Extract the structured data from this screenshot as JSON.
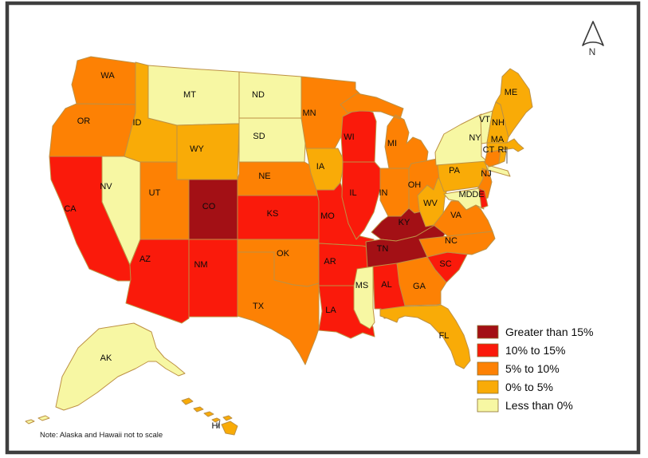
{
  "note": "Note: Alaska and Hawaii not to scale",
  "north_label": "N",
  "frame_color": "#3e3e3e",
  "map_border_color": "#bd9144",
  "background": "#ffffff",
  "legend": {
    "items": [
      {
        "key": "gt15",
        "label": "Greater than 15%",
        "color": "#a31015"
      },
      {
        "key": "r10_15",
        "label": "10% to 15%",
        "color": "#fa1a0b"
      },
      {
        "key": "o5_10",
        "label": "5% to 10%",
        "color": "#fd8104"
      },
      {
        "key": "a0_5",
        "label": "0% to 5%",
        "color": "#f9ab07"
      },
      {
        "key": "lt0",
        "label": "Less than 0%",
        "color": "#f7f7a3"
      }
    ]
  },
  "states": [
    {
      "abbr": "WA",
      "category": "o5_10"
    },
    {
      "abbr": "OR",
      "category": "o5_10"
    },
    {
      "abbr": "CA",
      "category": "r10_15"
    },
    {
      "abbr": "NV",
      "category": "lt0"
    },
    {
      "abbr": "ID",
      "category": "a0_5"
    },
    {
      "abbr": "MT",
      "category": "lt0"
    },
    {
      "abbr": "WY",
      "category": "a0_5"
    },
    {
      "abbr": "UT",
      "category": "o5_10"
    },
    {
      "abbr": "CO",
      "category": "gt15"
    },
    {
      "abbr": "AZ",
      "category": "r10_15"
    },
    {
      "abbr": "NM",
      "category": "r10_15"
    },
    {
      "abbr": "ND",
      "category": "lt0"
    },
    {
      "abbr": "SD",
      "category": "lt0"
    },
    {
      "abbr": "NE",
      "category": "o5_10"
    },
    {
      "abbr": "KS",
      "category": "r10_15"
    },
    {
      "abbr": "OK",
      "category": "o5_10"
    },
    {
      "abbr": "TX",
      "category": "o5_10"
    },
    {
      "abbr": "MN",
      "category": "o5_10"
    },
    {
      "abbr": "IA",
      "category": "a0_5"
    },
    {
      "abbr": "MO",
      "category": "r10_15"
    },
    {
      "abbr": "AR",
      "category": "r10_15"
    },
    {
      "abbr": "LA",
      "category": "r10_15"
    },
    {
      "abbr": "WI",
      "category": "r10_15"
    },
    {
      "abbr": "IL",
      "category": "r10_15"
    },
    {
      "abbr": "MI",
      "category": "o5_10"
    },
    {
      "abbr": "IN",
      "category": "o5_10"
    },
    {
      "abbr": "OH",
      "category": "o5_10"
    },
    {
      "abbr": "KY",
      "category": "gt15"
    },
    {
      "abbr": "TN",
      "category": "gt15"
    },
    {
      "abbr": "MS",
      "category": "lt0"
    },
    {
      "abbr": "AL",
      "category": "r10_15"
    },
    {
      "abbr": "GA",
      "category": "o5_10"
    },
    {
      "abbr": "FL",
      "category": "a0_5"
    },
    {
      "abbr": "SC",
      "category": "r10_15"
    },
    {
      "abbr": "NC",
      "category": "o5_10"
    },
    {
      "abbr": "VA",
      "category": "o5_10"
    },
    {
      "abbr": "WV",
      "category": "a0_5"
    },
    {
      "abbr": "PA",
      "category": "a0_5"
    },
    {
      "abbr": "NY",
      "category": "lt0"
    },
    {
      "abbr": "NJ",
      "category": "o5_10"
    },
    {
      "abbr": "MD",
      "category": "lt0"
    },
    {
      "abbr": "DE",
      "category": "r10_15"
    },
    {
      "abbr": "VT",
      "category": "lt0"
    },
    {
      "abbr": "NH",
      "category": "a0_5"
    },
    {
      "abbr": "ME",
      "category": "a0_5"
    },
    {
      "abbr": "MA",
      "category": "a0_5"
    },
    {
      "abbr": "CT",
      "category": "o5_10"
    },
    {
      "abbr": "RI",
      "category": "a0_5"
    },
    {
      "abbr": "AK",
      "category": "lt0"
    },
    {
      "abbr": "HI",
      "category": "a0_5"
    }
  ]
}
